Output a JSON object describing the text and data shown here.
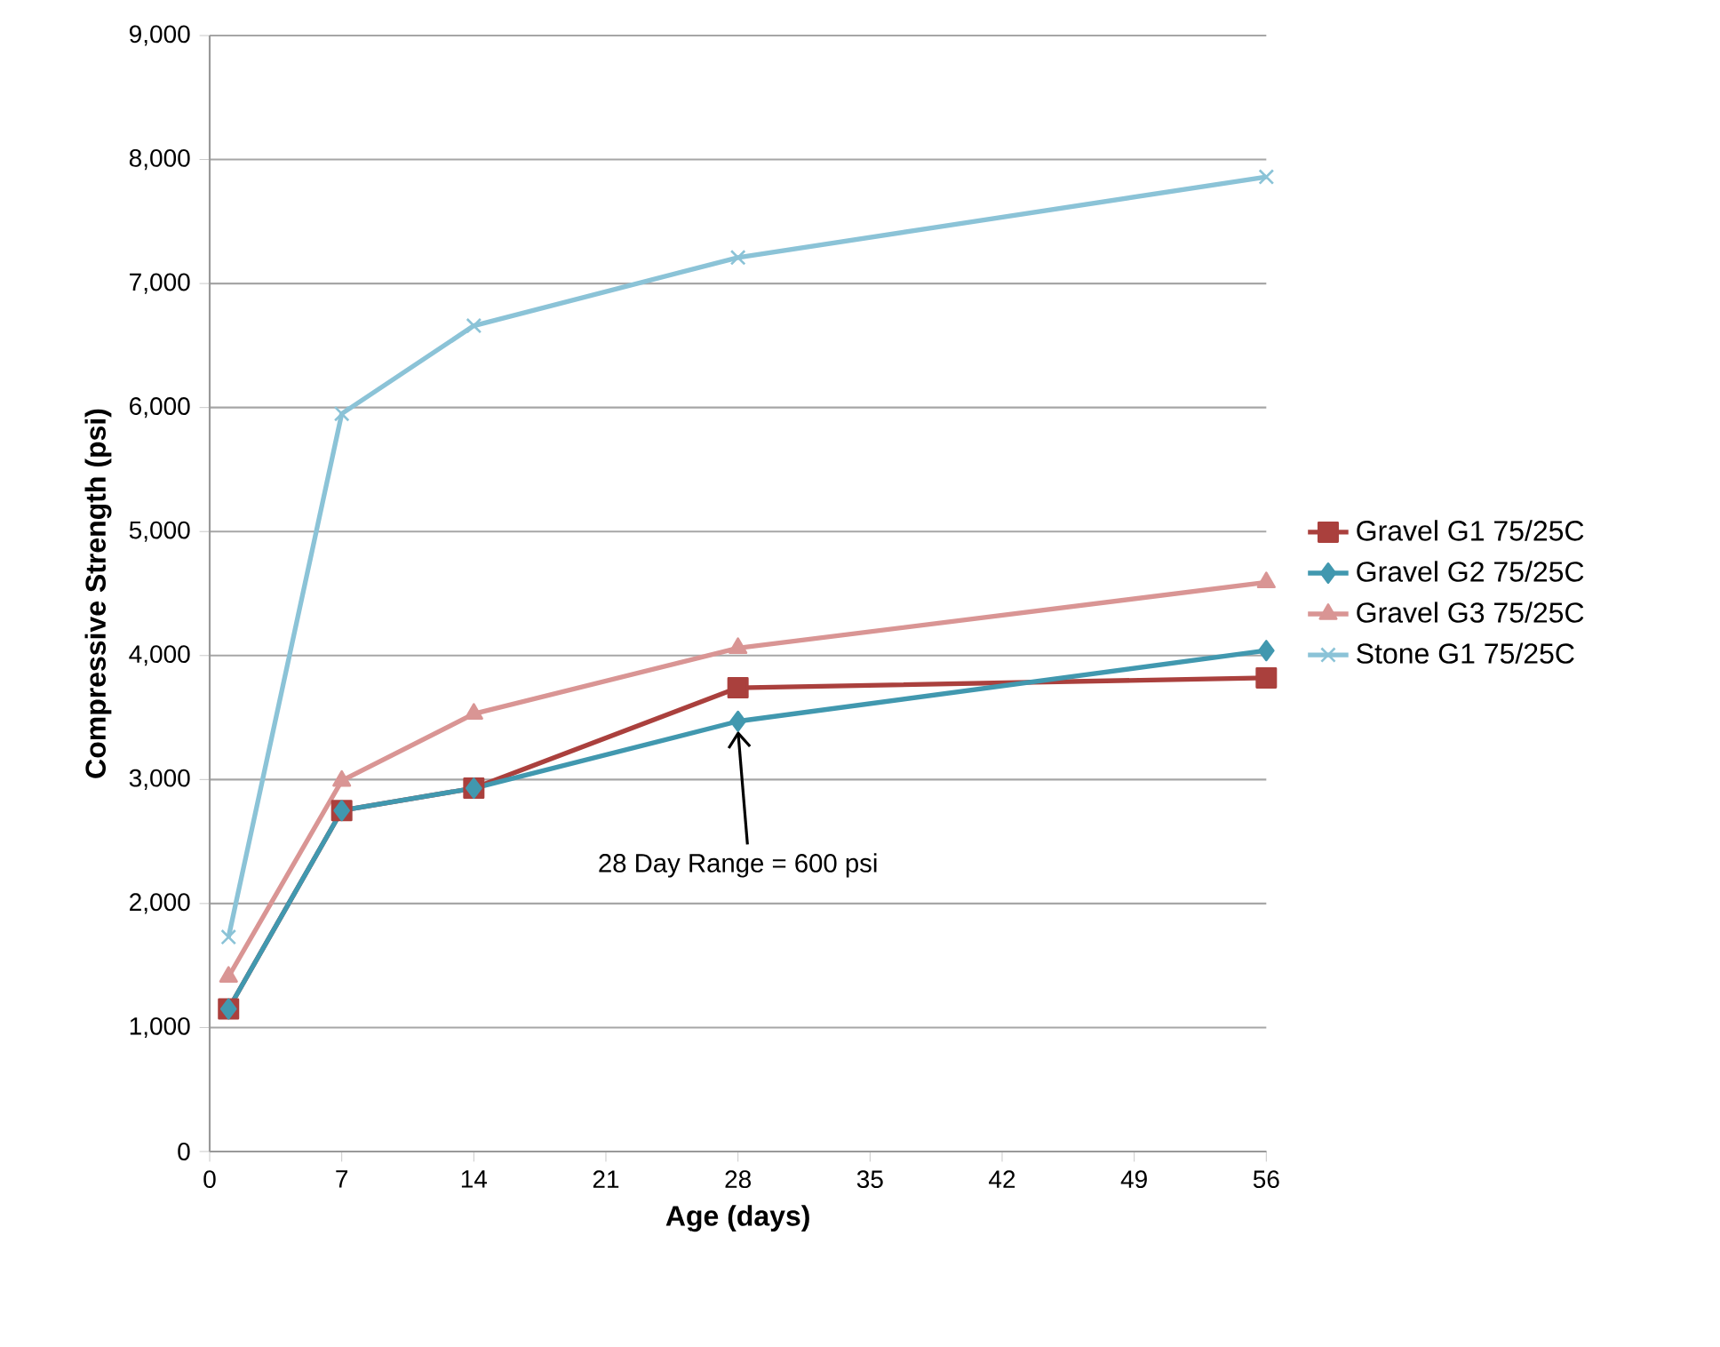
{
  "chart_data": {
    "type": "line",
    "xlabel": "Age (days)",
    "ylabel": "Compressive Strength (psi)",
    "x": [
      1,
      7,
      14,
      28,
      56
    ],
    "series": [
      {
        "name": "Gravel G1 75/25C",
        "color": "#aa403d",
        "marker": "square",
        "values": [
          1150,
          2750,
          2930,
          3740,
          3820
        ]
      },
      {
        "name": "Gravel G2 75/25C",
        "color": "#4198af",
        "marker": "diamond",
        "values": [
          1150,
          2750,
          2930,
          3470,
          4040
        ]
      },
      {
        "name": "Gravel G3 75/25C",
        "color": "#d99594",
        "marker": "triangle",
        "values": [
          1410,
          2990,
          3530,
          4060,
          4590
        ]
      },
      {
        "name": "Stone G1 75/25C",
        "color": "#8bc3d7",
        "marker": "cross",
        "values": [
          1730,
          5950,
          6660,
          7210,
          7860
        ]
      }
    ],
    "xlim": [
      0,
      56
    ],
    "xticks": [
      0,
      7,
      14,
      21,
      28,
      35,
      42,
      49,
      56
    ],
    "ylim": [
      0,
      9000
    ],
    "yticks": [
      {
        "value": 0,
        "label": "0"
      },
      {
        "value": 1000,
        "label": "1,000"
      },
      {
        "value": 2000,
        "label": "2,000"
      },
      {
        "value": 3000,
        "label": "3,000"
      },
      {
        "value": 4000,
        "label": "4,000"
      },
      {
        "value": 5000,
        "label": "5,000"
      },
      {
        "value": 6000,
        "label": "6,000"
      },
      {
        "value": 7000,
        "label": "7,000"
      },
      {
        "value": 8000,
        "label": "8,000"
      },
      {
        "value": 9000,
        "label": "9,000"
      }
    ],
    "grid": "y",
    "legend": "right",
    "line_style": "solid",
    "annotations": [
      {
        "text": "28 Day Range =  600 psi",
        "x": 28,
        "y": 3470
      }
    ]
  }
}
